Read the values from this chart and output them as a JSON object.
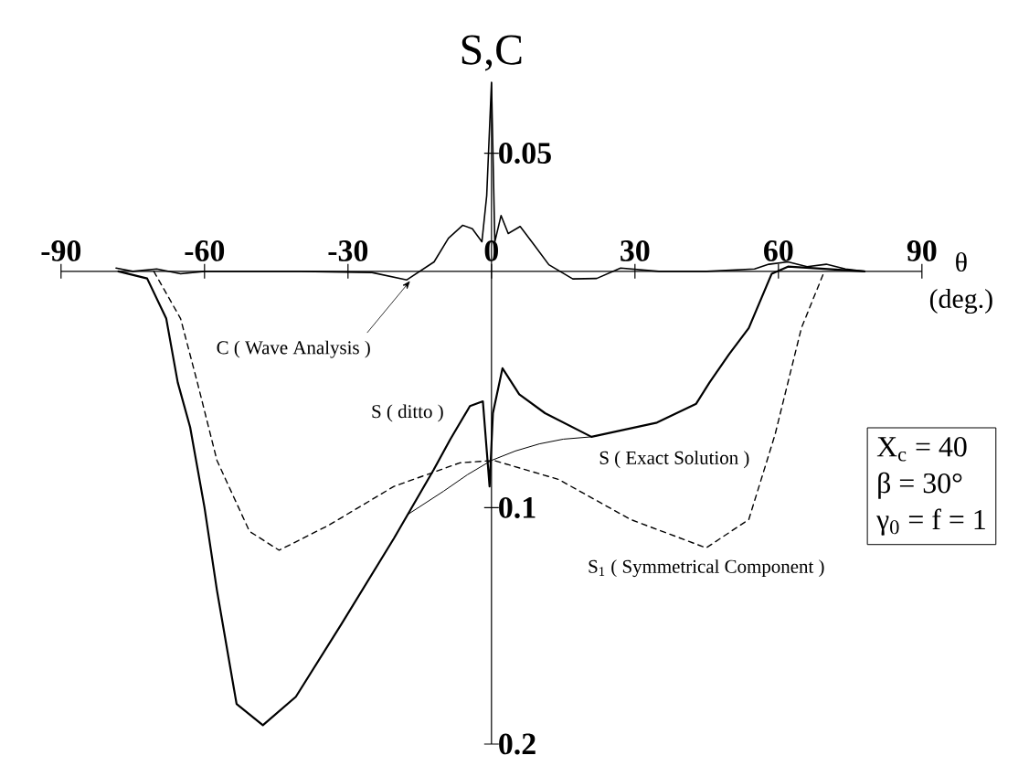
{
  "chart_data": {
    "type": "line",
    "xlabel": "θ (deg.)",
    "ylabel": "S,C",
    "xlim": [
      -90,
      90
    ],
    "xticks": [
      -90,
      -60,
      -30,
      0,
      30,
      60,
      90
    ],
    "ylim": [
      -0.2,
      0.08
    ],
    "yticks": [
      0.05,
      {
        "value": -0.1,
        "label": "0.1"
      },
      {
        "value": -0.2,
        "label": "0.2"
      }
    ],
    "grid": false,
    "legend": false,
    "marker": "none",
    "series": [
      {
        "name": "C ( Wave Analysis )",
        "color": "#000000",
        "line_style": "solid",
        "x": [
          -78.5,
          -75,
          -70,
          -65,
          -60,
          -50,
          -40,
          -25,
          -17.7,
          -12,
          -9,
          -6,
          -4,
          -2,
          -1,
          0,
          0.7,
          2,
          3.5,
          6,
          9,
          12,
          17,
          22,
          27,
          35,
          45,
          55,
          58,
          62,
          66,
          70,
          74,
          78
        ],
        "values": [
          0.0014,
          0.0,
          0.001,
          -0.001,
          0.0,
          0.0,
          0.0,
          -0.0005,
          -0.0036,
          0.004,
          0.014,
          0.0195,
          0.018,
          0.0125,
          0.032,
          0.08,
          0.0125,
          0.0236,
          0.016,
          0.019,
          0.011,
          0.0028,
          -0.0032,
          -0.003,
          0.0014,
          0.0,
          0.0,
          0.001,
          0.003,
          0.004,
          0.002,
          0.003,
          0.001,
          0.0
        ]
      },
      {
        "name": "S (     ditto     )",
        "color": "#000000",
        "line_style": "solid",
        "x": [
          -78,
          -72,
          -68,
          -65.6,
          -63,
          -60,
          -57.4,
          -53.3,
          -47.8,
          -40.9,
          -31.3,
          -20.4,
          -12.1,
          -8.6,
          -4.5,
          -1.8,
          -0.4,
          0.3,
          2.3,
          5.8,
          11.2,
          20.9,
          34.6,
          42.8,
          45.6,
          49.7,
          53.8,
          58.6,
          62,
          70,
          78
        ],
        "values": [
          0.0,
          -0.003,
          -0.02,
          -0.047,
          -0.066,
          -0.1,
          -0.135,
          -0.183,
          -0.192,
          -0.18,
          -0.149,
          -0.113,
          -0.084,
          -0.071,
          -0.057,
          -0.055,
          -0.091,
          -0.06,
          -0.041,
          -0.052,
          -0.06,
          -0.07,
          -0.064,
          -0.056,
          -0.047,
          -0.035,
          -0.024,
          -0.001,
          0.002,
          0.001,
          0.0
        ]
      },
      {
        "name": "S ( Exact Solution )",
        "color": "#000000",
        "line_style": "solid",
        "x": [
          -17.6,
          -10,
          -5,
          0,
          5,
          10,
          15,
          21
        ],
        "values": [
          -0.103,
          -0.093,
          -0.086,
          -0.08,
          -0.076,
          -0.073,
          -0.071,
          -0.07
        ]
      },
      {
        "name": "S$_{1}$ ( Symmetrical Component )",
        "color": "#000000",
        "line_style": "dashed",
        "x": [
          -70.6,
          -65,
          -61.5,
          -57.4,
          -50.6,
          -44.4,
          -34.1,
          -20.4,
          -6.6,
          0.5,
          14,
          29.1,
          44.9,
          53.8,
          59.3,
          64.8,
          69.6
        ],
        "values": [
          0.0,
          -0.02,
          -0.047,
          -0.08,
          -0.11,
          -0.118,
          -0.1075,
          -0.091,
          -0.081,
          -0.08,
          -0.088,
          -0.105,
          -0.117,
          -0.105,
          -0.069,
          -0.024,
          0.0
        ]
      }
    ],
    "annotations": [
      "X$_{c}$ = 40",
      "β = 30°",
      "γ$_{0}$ = f = 1"
    ]
  }
}
